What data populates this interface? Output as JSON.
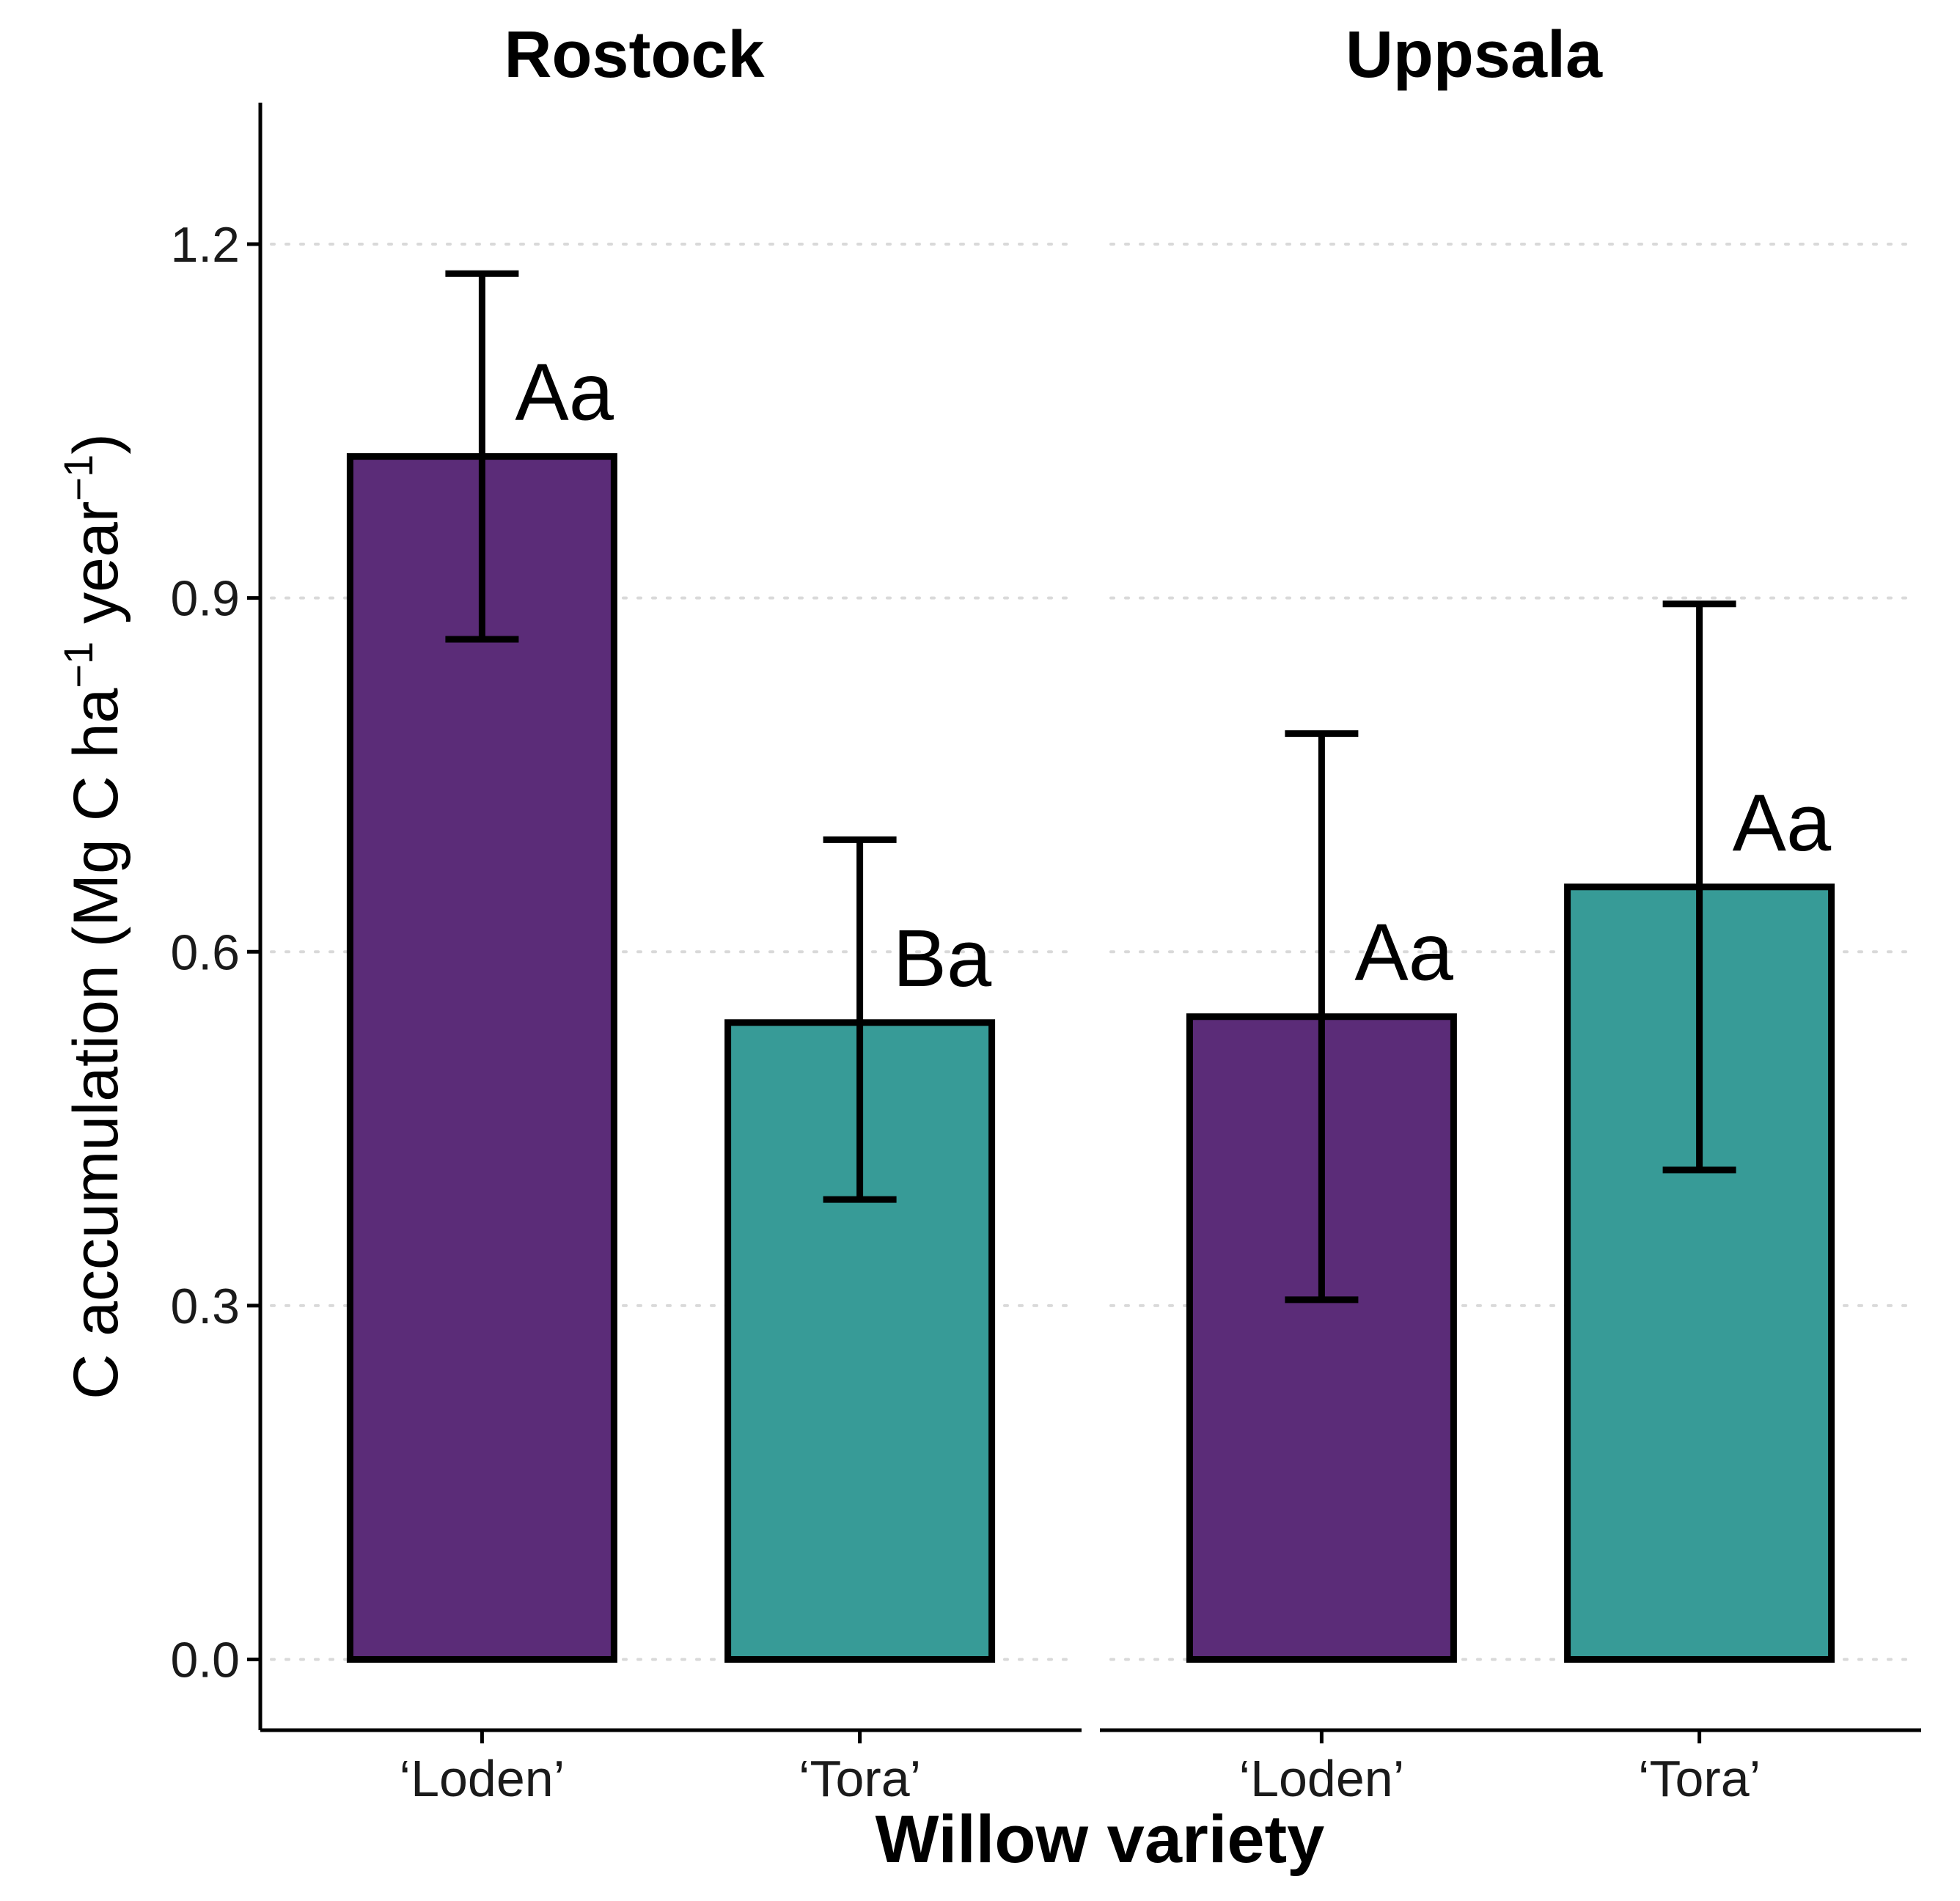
{
  "chart_data": {
    "type": "bar",
    "facet_by": "site",
    "xlabel": "Willow variety",
    "ylabel": "C accumulation (Mg C ha⁻¹ year⁻¹)",
    "ylabel_parts": {
      "pre": "C accumulation (Mg C ha",
      "sup1": "−1",
      "mid": " year",
      "sup2": "−1",
      "post": ")"
    },
    "ylim": [
      -0.06,
      1.32
    ],
    "yticks": [
      "0.0",
      "0.3",
      "0.6",
      "0.9",
      "1.2"
    ],
    "ytick_values": [
      0.0,
      0.3,
      0.6,
      0.9,
      1.2
    ],
    "grid": "horizontal-dotted",
    "colors": {
      "Loden": "#5b2c78",
      "Tora": "#379b97"
    },
    "facets": [
      {
        "title": "Rostock",
        "categories": [
          "‘Loden’",
          "‘Tora’"
        ],
        "values": [
          1.02,
          0.54
        ],
        "error_low": [
          0.865,
          0.39
        ],
        "error_high": [
          1.175,
          0.695
        ],
        "labels": [
          "Aa",
          "Ba"
        ]
      },
      {
        "title": "Uppsala",
        "categories": [
          "‘Loden’",
          "‘Tora’"
        ],
        "values": [
          0.545,
          0.655
        ],
        "error_low": [
          0.305,
          0.415
        ],
        "error_high": [
          0.785,
          0.895
        ],
        "labels": [
          "Aa",
          "Aa"
        ]
      }
    ]
  }
}
